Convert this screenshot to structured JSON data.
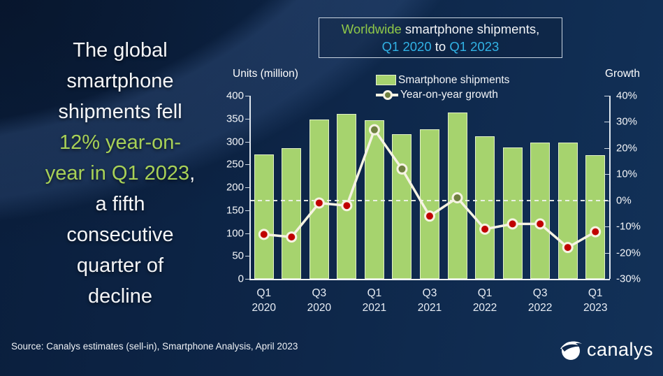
{
  "headline": {
    "lines": [
      [
        {
          "t": "The global",
          "c": "w"
        }
      ],
      [
        {
          "t": "smartphone",
          "c": "w"
        }
      ],
      [
        {
          "t": "shipments fell",
          "c": "w"
        }
      ],
      [
        {
          "t": "12% year-on-",
          "c": "g"
        }
      ],
      [
        {
          "t": "year in Q1 2023",
          "c": "g"
        },
        {
          "t": ",",
          "c": "w"
        }
      ],
      [
        {
          "t": "a fifth",
          "c": "w"
        }
      ],
      [
        {
          "t": "consecutive",
          "c": "w"
        }
      ],
      [
        {
          "t": "quarter of",
          "c": "w"
        }
      ],
      [
        {
          "t": "decline",
          "c": "w"
        }
      ]
    ]
  },
  "title_box": {
    "line1": [
      {
        "t": "Worldwide",
        "c": "g"
      },
      {
        "t": " smartphone shipments,",
        "c": "w"
      }
    ],
    "line2": [
      {
        "t": "Q1 2020",
        "c": "c"
      },
      {
        "t": " to ",
        "c": "w"
      },
      {
        "t": "Q1 2023",
        "c": "c"
      }
    ]
  },
  "axes": {
    "left_label": "Units (million)",
    "right_label": "Growth"
  },
  "chart_data": {
    "type": "bar",
    "title": "Worldwide smartphone shipments, Q1 2020 to Q1 2023",
    "categories": [
      "Q1 2020",
      "Q2 2020",
      "Q3 2020",
      "Q4 2020",
      "Q1 2021",
      "Q2 2021",
      "Q3 2021",
      "Q4 2021",
      "Q1 2022",
      "Q2 2022",
      "Q3 2022",
      "Q4 2022",
      "Q1 2023"
    ],
    "series": [
      {
        "name": "Smartphone shipments",
        "type": "bar",
        "axis": "left",
        "values": [
          272,
          285,
          348,
          360,
          347,
          316,
          327,
          363,
          311,
          287,
          298,
          297,
          270
        ]
      },
      {
        "name": "Year-on-year growth",
        "type": "line",
        "axis": "right",
        "values": [
          -13,
          -14,
          -1,
          -2,
          27,
          12,
          -6,
          1,
          -11,
          -9,
          -9,
          -18,
          -12
        ]
      }
    ],
    "left_axis": {
      "label": "Units (million)",
      "min": 0,
      "max": 400,
      "ticks": [
        400,
        350,
        300,
        250,
        200,
        150,
        100,
        50,
        0
      ]
    },
    "right_axis": {
      "label": "Growth",
      "min": -30,
      "max": 40,
      "ticks": [
        40,
        30,
        20,
        10,
        0,
        -10,
        -20,
        -30
      ],
      "tick_suffix": "%"
    },
    "x_ticks": [
      {
        "index": 0,
        "line1": "Q1",
        "line2": "2020"
      },
      {
        "index": 2,
        "line1": "Q3",
        "line2": "2020"
      },
      {
        "index": 4,
        "line1": "Q1",
        "line2": "2021"
      },
      {
        "index": 6,
        "line1": "Q3",
        "line2": "2021"
      },
      {
        "index": 8,
        "line1": "Q1",
        "line2": "2022"
      },
      {
        "index": 10,
        "line1": "Q3",
        "line2": "2022"
      },
      {
        "index": 12,
        "line1": "Q1",
        "line2": "2023"
      }
    ],
    "zero_line": true,
    "legend_position": "top",
    "grid": false
  },
  "footer": {
    "source": "Source: Canalys estimates (sell-in), Smartphone Analysis, April 2023",
    "logo_text": "canalys"
  },
  "colors": {
    "bar": "#a6d36e",
    "bar_border": "#e2f0c8",
    "line": "#f6f3e3",
    "marker_positive": "#6f8040",
    "marker_negative": "#c00000",
    "marker_ring": "#f6f3e3",
    "headline_green": "#a8d157",
    "title_green": "#8fc848",
    "title_cyan": "#31b2e5",
    "background_navy": "#0d2547"
  }
}
